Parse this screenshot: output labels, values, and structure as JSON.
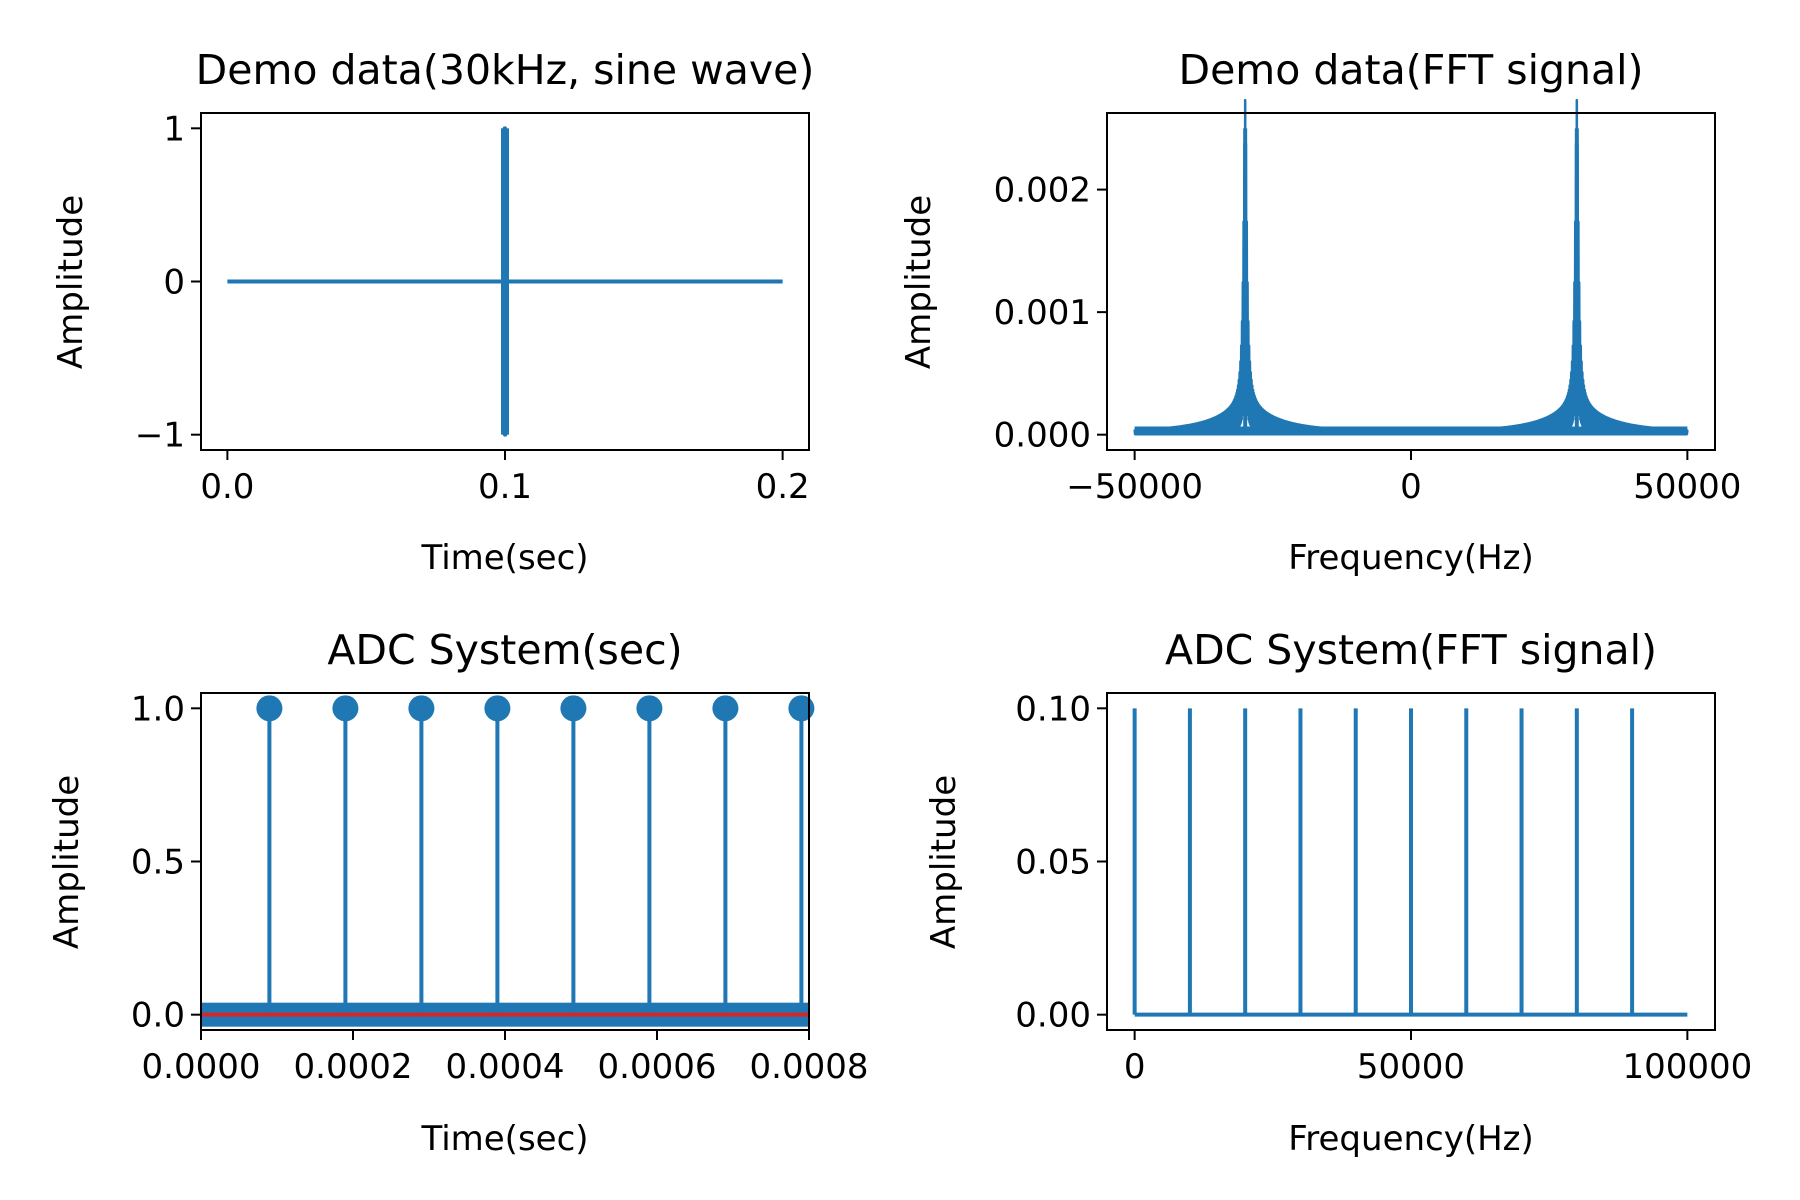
{
  "figure": {
    "background": "#ffffff",
    "series_color": "#1f77b4",
    "baseline_color": "#d62728"
  },
  "chart_data": [
    {
      "id": "demo-time",
      "type": "line",
      "title": "Demo data(30kHz, sine wave)",
      "xlabel": "Time(sec)",
      "ylabel": "Amplitude",
      "xlim": [
        -0.0095,
        0.2095
      ],
      "ylim": [
        -1.1,
        1.1
      ],
      "xticks": [
        0.0,
        0.1,
        0.2
      ],
      "xtick_labels": [
        "0.0",
        "0.1",
        "0.2"
      ],
      "yticks": [
        -1,
        0,
        1
      ],
      "ytick_labels": [
        "−1",
        "0",
        "1"
      ],
      "grid": false,
      "series": [
        {
          "x": [
            0.0,
            0.0999,
            0.0999,
            0.1,
            0.1,
            0.1001,
            0.1001,
            0.2
          ],
          "y": [
            0,
            0,
            1,
            1,
            -1,
            -1,
            0,
            0
          ]
        }
      ]
    },
    {
      "id": "demo-fft",
      "type": "line",
      "title": "Demo data(FFT signal)",
      "xlabel": "Frequency(Hz)",
      "ylabel": "Amplitude",
      "xlim": [
        -55000,
        55000
      ],
      "ylim": [
        -0.000125,
        0.002625
      ],
      "xticks": [
        -50000,
        0,
        50000
      ],
      "xtick_labels": [
        "−50000",
        "0",
        "50000"
      ],
      "yticks": [
        0.0,
        0.001,
        0.002
      ],
      "ytick_labels": [
        "0.000",
        "0.001",
        "0.002"
      ],
      "grid": false,
      "peaks": [
        {
          "frequency": -30000,
          "amplitude": 0.0025
        },
        {
          "frequency": 30000,
          "amplitude": 0.0025
        }
      ],
      "noise_floor": 3e-05,
      "x_range": [
        -50000,
        50000
      ]
    },
    {
      "id": "adc-time",
      "type": "stem",
      "title": "ADC System(sec)",
      "xlabel": "Time(sec)",
      "ylabel": "Amplitude",
      "xlim": [
        0.0,
        0.0008
      ],
      "ylim": [
        -0.05,
        1.05
      ],
      "xticks": [
        0.0,
        0.0002,
        0.0004,
        0.0006,
        0.0008
      ],
      "xtick_labels": [
        "0.0000",
        "0.0002",
        "0.0004",
        "0.0006",
        "0.0008"
      ],
      "yticks": [
        0.0,
        0.5,
        1.0
      ],
      "ytick_labels": [
        "0.0",
        "0.5",
        "1.0"
      ],
      "grid": false,
      "stems": {
        "x": [
          9e-05,
          0.00019,
          0.00029,
          0.00039,
          0.00049,
          0.00059,
          0.00069,
          0.00079
        ],
        "y": [
          1,
          1,
          1,
          1,
          1,
          1,
          1,
          1
        ]
      },
      "baseline": 0
    },
    {
      "id": "adc-fft",
      "type": "line",
      "title": "ADC System(FFT signal)",
      "xlabel": "Frequency(Hz)",
      "ylabel": "Amplitude",
      "xlim": [
        -5000,
        105000
      ],
      "ylim": [
        -0.005,
        0.105
      ],
      "xticks": [
        0,
        50000,
        100000
      ],
      "xtick_labels": [
        "0",
        "50000",
        "100000"
      ],
      "yticks": [
        0.0,
        0.05,
        0.1
      ],
      "ytick_labels": [
        "0.00",
        "0.05",
        "0.10"
      ],
      "grid": false,
      "spikes": {
        "x": [
          0,
          10000,
          20000,
          30000,
          40000,
          50000,
          60000,
          70000,
          80000,
          90000
        ],
        "y": [
          0.1,
          0.1,
          0.1,
          0.1,
          0.1,
          0.1,
          0.1,
          0.1,
          0.1,
          0.1
        ]
      },
      "x_range": [
        0,
        100000
      ]
    }
  ]
}
